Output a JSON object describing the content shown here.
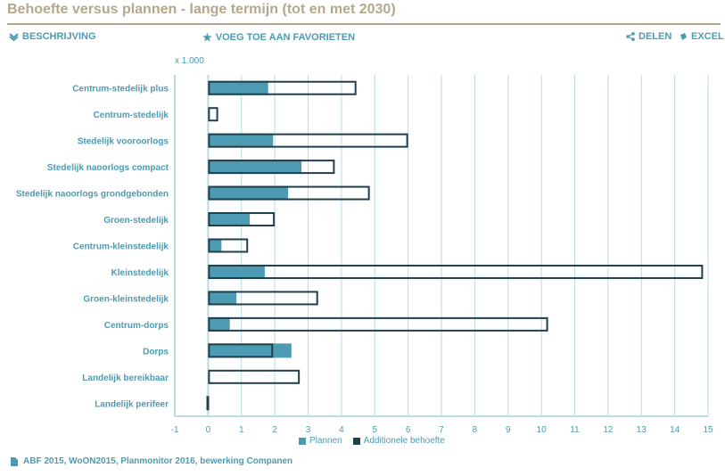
{
  "header": {
    "title": "Behoefte versus plannen - lange termijn (tot en met 2030)"
  },
  "toolbar": {
    "description_label": "BESCHRIJVING",
    "favorites_label": "VOEG TOE AAN FAVORIETEN",
    "share_label": "DELEN",
    "excel_label": "EXCEL"
  },
  "footer": {
    "source": "ABF 2015, WoON2015, Planmonitor 2016, bewerking Companen"
  },
  "colors": {
    "plannen": "#4d9bb3",
    "behoefte_outline": "#1f3f4d",
    "grid": "#b9dbe5",
    "text": "#4d9bb3",
    "title": "#b5a78c"
  },
  "chart_data": {
    "type": "bar",
    "orientation": "horizontal",
    "unit_label": "x 1.000",
    "categories": [
      "Centrum-stedelijk plus",
      "Centrum-stedelijk",
      "Stedelijk vooroorlogs",
      "Stedelijk naoorlogs compact",
      "Stedelijk naoorlogs grondgebonden",
      "Groen-stedelijk",
      "Centrum-kleinstedelijk",
      "Kleinstedelijk",
      "Groen-kleinstedelijk",
      "Centrum-dorps",
      "Dorps",
      "Landelijk bereikbaar",
      "Landelijk perifeer"
    ],
    "series": [
      {
        "name": "Plannen",
        "values": [
          1.8,
          0,
          1.95,
          2.8,
          2.4,
          1.25,
          0.4,
          1.7,
          0.85,
          0.65,
          2.5,
          0,
          0
        ]
      },
      {
        "name": "Additionele behoefte",
        "values": [
          4.45,
          0.3,
          6.0,
          3.8,
          4.85,
          2.0,
          1.2,
          14.85,
          3.3,
          10.2,
          1.95,
          2.75,
          -0.05
        ]
      }
    ],
    "xlim": [
      -1,
      15
    ],
    "xticks": [
      "-1",
      "0",
      "1",
      "2",
      "3",
      "4",
      "5",
      "6",
      "7",
      "8",
      "9",
      "10",
      "11",
      "12",
      "13",
      "14",
      "15"
    ],
    "grid": true,
    "legend_position": "bottom"
  }
}
